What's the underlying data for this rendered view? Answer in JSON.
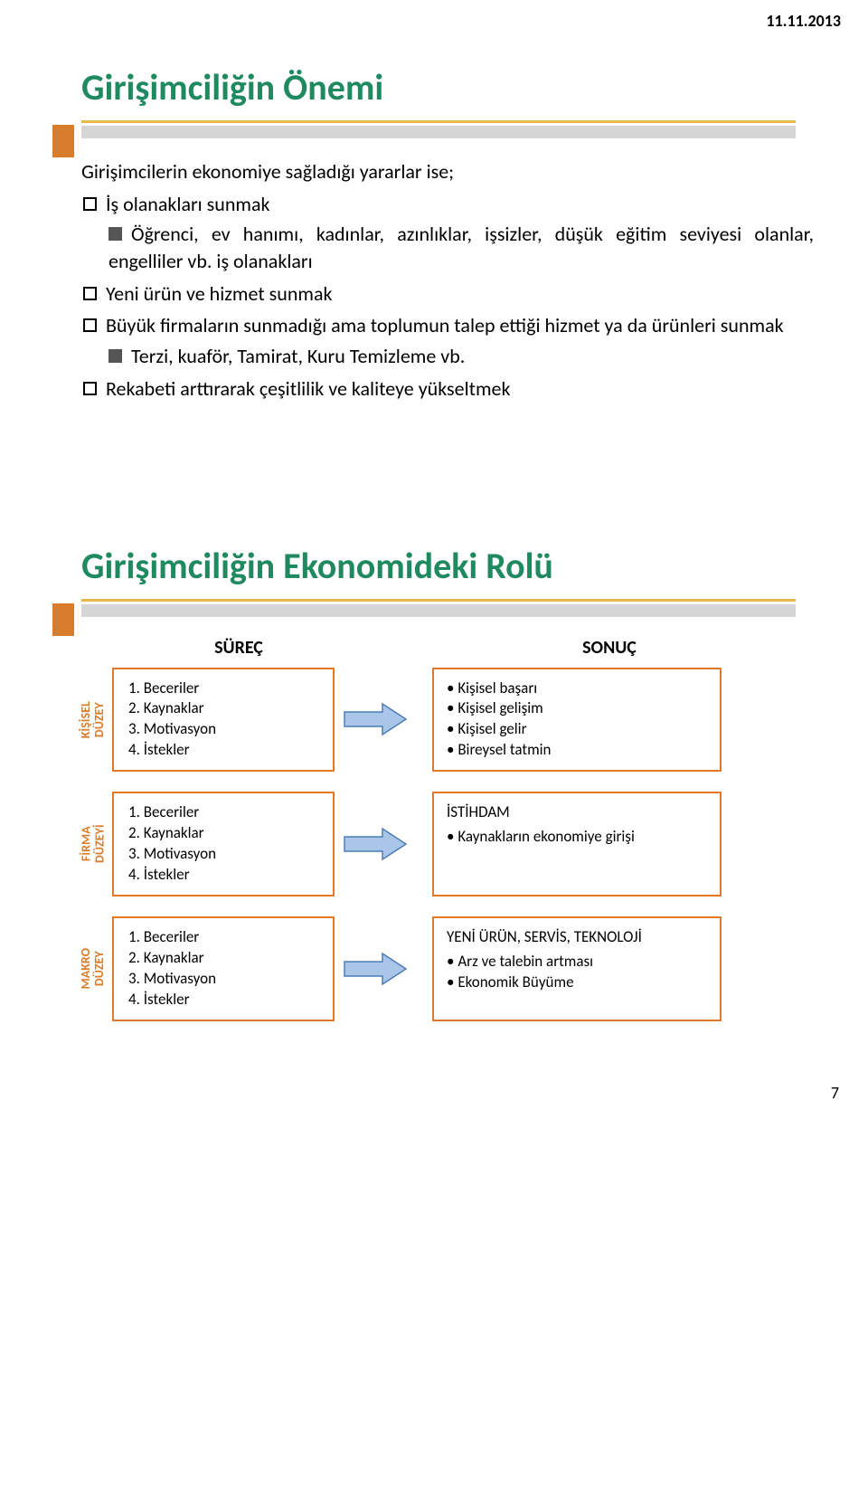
{
  "page": {
    "date": "11.11.2013",
    "page_number": "7"
  },
  "colors": {
    "title": "#1f8a5f",
    "bar_thin": "#e8b84a",
    "bar_thick": "#d6d6d6",
    "accent_block": "#d97c2b",
    "card_border": "#e07a28",
    "arrow_fill": "#a9c6e8",
    "arrow_stroke": "#4d7db5",
    "vlabel_color": "#d97c2b"
  },
  "slide1": {
    "title": "Girişimciliğin Önemi",
    "intro": "Girişimcilerin ekonomiye sağladığı yararlar ise;",
    "items": [
      {
        "label": "İş olanakları sunmak",
        "sub": "Öğrenci, ev hanımı, kadınlar, azınlıklar, işsizler, düşük eğitim seviyesi olanlar, engelliler vb. iş olanakları"
      },
      {
        "label": "Yeni ürün ve hizmet sunmak",
        "sub": null
      },
      {
        "label": "Büyük firmaların sunmadığı ama toplumun talep ettiği hizmet ya da ürünleri sunmak",
        "sub": "Terzi, kuaför, Tamirat, Kuru Temizleme vb."
      },
      {
        "label": "Rekabeti arttırarak çeşitlilik ve kaliteye yükseltmek",
        "sub": null
      }
    ]
  },
  "slide2": {
    "title": "Girişimciliğin Ekonomideki Rolü",
    "left_header": "SÜREÇ",
    "right_header": "SONUÇ",
    "levels": [
      {
        "vlabel": "KİŞİSEL\nDÜZEY",
        "process": [
          "Beceriler",
          "Kaynaklar",
          "Motivasyon",
          "İstekler"
        ],
        "result_title": null,
        "result_items": [
          "Kişisel başarı",
          "Kişisel gelişim",
          "Kişisel gelir",
          "Bireysel tatmin"
        ]
      },
      {
        "vlabel": "FİRMA\nDÜZEYİ",
        "process": [
          "Beceriler",
          "Kaynaklar",
          "Motivasyon",
          "İstekler"
        ],
        "result_title": "İSTİHDAM",
        "result_items": [
          "Kaynakların ekonomiye girişi"
        ]
      },
      {
        "vlabel": "MAKRO\nDÜZEY",
        "process": [
          "Beceriler",
          "Kaynaklar",
          "Motivasyon",
          "İstekler"
        ],
        "result_title": "YENİ ÜRÜN, SERVİS, TEKNOLOJİ",
        "result_items": [
          "Arz ve talebin artması",
          "Ekonomik Büyüme"
        ]
      }
    ]
  }
}
